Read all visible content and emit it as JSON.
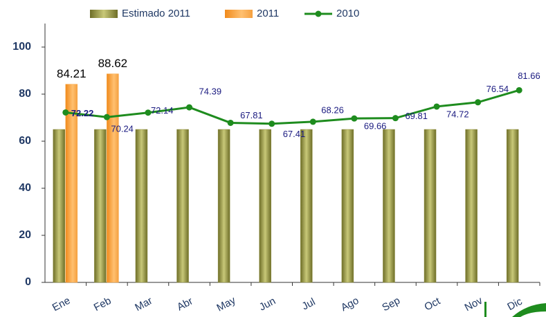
{
  "chart_data": {
    "type": "bar_line",
    "categories": [
      "Ene",
      "Feb",
      "Mar",
      "Abr",
      "May",
      "Jun",
      "Jul",
      "Ago",
      "Sep",
      "Oct",
      "Nov",
      "Dic"
    ],
    "series": [
      {
        "name": "Estimado 2011",
        "type": "bar",
        "color": "#8c8c3c",
        "values": [
          65,
          65,
          65,
          65,
          65,
          65,
          65,
          65,
          65,
          65,
          65,
          65
        ]
      },
      {
        "name": "2011",
        "type": "bar",
        "color": "#f7a33c",
        "values": [
          84.21,
          88.62,
          null,
          null,
          null,
          null,
          null,
          null,
          null,
          null,
          null,
          null
        ]
      },
      {
        "name": "2010",
        "type": "line",
        "color": "#1e8c1e",
        "values": [
          72.22,
          70.24,
          72.14,
          74.39,
          67.81,
          67.41,
          68.26,
          69.66,
          69.81,
          74.72,
          76.54,
          81.66
        ]
      }
    ],
    "ylim": [
      0,
      110
    ],
    "yticks": [
      0,
      20,
      40,
      60,
      80,
      100
    ],
    "legend": "top"
  }
}
